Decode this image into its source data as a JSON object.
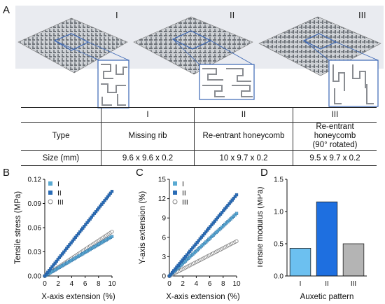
{
  "panels": {
    "a": "A",
    "b": "B",
    "c": "C",
    "d": "D"
  },
  "renders": [
    "I",
    "II",
    "III"
  ],
  "table": {
    "headers": [
      "",
      "I",
      "II",
      "III"
    ],
    "rows": [
      {
        "label": "Type",
        "cells": [
          "Missing rib",
          "Re-entrant honeycomb",
          "Re-entrant honeycomb"
        ],
        "note": "(90° rotated)"
      },
      {
        "label": "Size (mm)",
        "cells": [
          "9.6 x 9.6 x 0.2",
          "10 x 9.7 x 0.2",
          "9.5 x 9.7 x 0.2"
        ]
      }
    ]
  },
  "chart_data": [
    {
      "type": "scatter",
      "title": "",
      "xlabel": "X-axis extension (%)",
      "ylabel": "Tensile stress (MPa)",
      "xlim": [
        0,
        10
      ],
      "ylim": [
        0,
        0.12
      ],
      "xticks": [
        "0",
        "2",
        "4",
        "6",
        "8",
        "10"
      ],
      "yticks": [
        "0.00",
        "0.03",
        "0.06",
        "0.09",
        "0.12"
      ],
      "legend": "top-left",
      "series": [
        {
          "name": "I",
          "color": "#5aaad2",
          "marker": "square-filled",
          "x": [
            0,
            10
          ],
          "y": [
            0,
            0.049
          ]
        },
        {
          "name": "II",
          "color": "#2a6cb6",
          "marker": "square-filled",
          "x": [
            0,
            10
          ],
          "y": [
            0,
            0.105
          ]
        },
        {
          "name": "III",
          "color": "#888888",
          "marker": "circle-open",
          "x": [
            0,
            10
          ],
          "y": [
            0,
            0.055
          ]
        }
      ]
    },
    {
      "type": "scatter",
      "title": "",
      "xlabel": "X-axis extension (%)",
      "ylabel": "Y-axis extension (%)",
      "xlim": [
        0,
        10
      ],
      "ylim": [
        0,
        15
      ],
      "xticks": [
        "0",
        "2",
        "4",
        "6",
        "8",
        "10"
      ],
      "yticks": [
        "0",
        "3",
        "6",
        "9",
        "12",
        "15"
      ],
      "legend": "top-left",
      "series": [
        {
          "name": "I",
          "color": "#5aaad2",
          "marker": "square-filled",
          "x": [
            0,
            10
          ],
          "y": [
            0,
            9.7
          ]
        },
        {
          "name": "II",
          "color": "#2a6cb6",
          "marker": "square-filled",
          "x": [
            0,
            10
          ],
          "y": [
            0,
            12.6
          ]
        },
        {
          "name": "III",
          "color": "#888888",
          "marker": "circle-open",
          "x": [
            0,
            10
          ],
          "y": [
            0,
            5.4
          ]
        }
      ]
    },
    {
      "type": "bar",
      "title": "",
      "xlabel": "Auxetic pattern",
      "ylabel": "Tensile modulus (MPa)",
      "ylim": [
        0,
        1.5
      ],
      "yticks": [
        "0.0",
        "0.5",
        "1.0",
        "1.5"
      ],
      "categories": [
        "I",
        "II",
        "III"
      ],
      "values": [
        0.43,
        1.15,
        0.5
      ],
      "colors": [
        "#6cc0f0",
        "#1e6fe0",
        "#b4b4b4"
      ]
    }
  ]
}
